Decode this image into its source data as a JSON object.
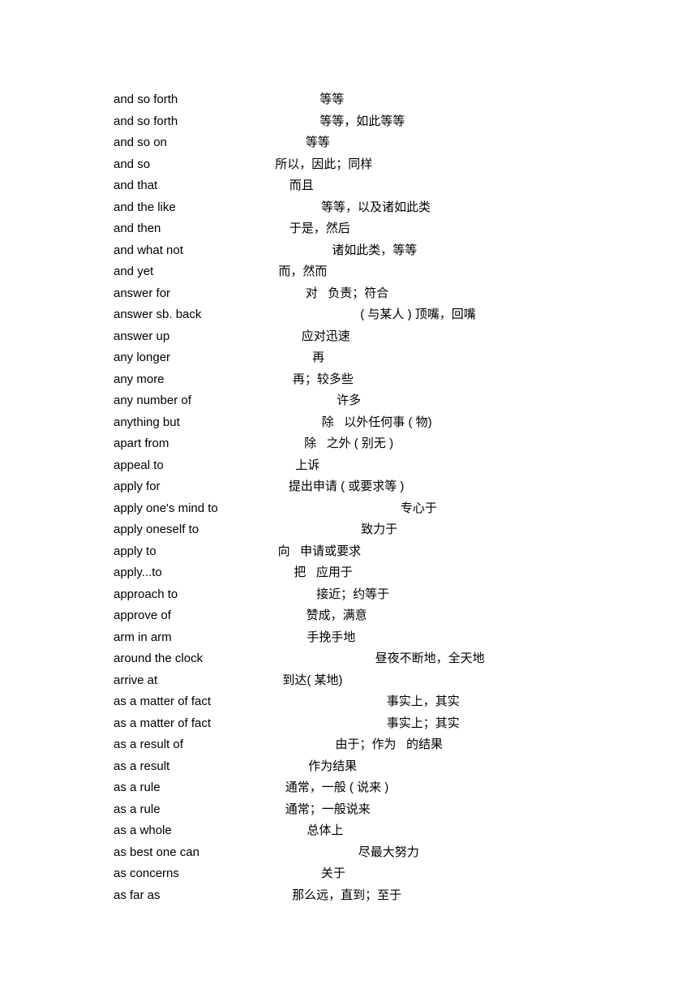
{
  "entries": [
    {
      "en": "and so forth",
      "pad": "                                          ",
      "zh": "等等"
    },
    {
      "en": "and so forth",
      "pad": "                                          ",
      "zh": "等等，如此等等"
    },
    {
      "en": "and so on",
      "pad": "                                         ",
      "zh": "等等"
    },
    {
      "en": "and so",
      "pad": "                                     ",
      "zh": "所以，因此；同样"
    },
    {
      "en": "and that",
      "pad": "                                       ",
      "zh": "而且"
    },
    {
      "en": "and the like",
      "pad": "                                           ",
      "zh": "等等，以及诸如此类"
    },
    {
      "en": "and then",
      "pad": "                                      ",
      "zh": "于是，然后"
    },
    {
      "en": "and what not",
      "pad": "                                            ",
      "zh": "诸如此类，等等"
    },
    {
      "en": "and yet",
      "pad": "                                     ",
      "zh": "而，然而"
    },
    {
      "en": "answer for",
      "pad": "                                        ",
      "zh": "对   负责；符合"
    },
    {
      "en": "answer sb. back",
      "pad": "                                               ",
      "zh": "( 与某人 ) 顶嘴，回嘴"
    },
    {
      "en": "answer up",
      "pad": "                                       ",
      "zh": "应对迅速"
    },
    {
      "en": "any longer",
      "pad": "                                          ",
      "zh": "再"
    },
    {
      "en": "any more",
      "pad": "                                      ",
      "zh": "再；较多些"
    },
    {
      "en": "any number of",
      "pad": "                                           ",
      "zh": "许多"
    },
    {
      "en": "anything but",
      "pad": "                                          ",
      "zh": "除   以外任何事 ( 物)"
    },
    {
      "en": "apart from",
      "pad": "                                        ",
      "zh": "除   之外 ( 别无 )"
    },
    {
      "en": "appeal to",
      "pad": "                                       ",
      "zh": "上诉"
    },
    {
      "en": "apply for",
      "pad": "                                      ",
      "zh": "提出申请 ( 或要求等 )"
    },
    {
      "en": "apply one's mind to",
      "pad": "                                                      ",
      "zh": "专心于"
    },
    {
      "en": "apply oneself to",
      "pad": "                                                ",
      "zh": "致力于"
    },
    {
      "en": "apply to",
      "pad": "                                    ",
      "zh": "向   申请或要求"
    },
    {
      "en": "apply...to",
      "pad": "                                       ",
      "zh": "把   应用于"
    },
    {
      "en": "approach to",
      "pad": "                                         ",
      "zh": "接近；约等于"
    },
    {
      "en": "approve of",
      "pad": "                                        ",
      "zh": "赞成，满意"
    },
    {
      "en": "arm in arm",
      "pad": "                                        ",
      "zh": "手挽手地"
    },
    {
      "en": "around the clock",
      "pad": "                                                   ",
      "zh": "昼夜不断地，全天地"
    },
    {
      "en": "arrive at",
      "pad": "                                     ",
      "zh": "到达( 某地)"
    },
    {
      "en": "as a matter of fact",
      "pad": "                                                    ",
      "zh": "事实上，其实"
    },
    {
      "en": "as a matter of fact",
      "pad": "                                                    ",
      "zh": "事实上；其实"
    },
    {
      "en": "as a result of",
      "pad": "                                             ",
      "zh": "由于；作为   的结果"
    },
    {
      "en": "as a result",
      "pad": "                                         ",
      "zh": "作为结果"
    },
    {
      "en": "as a rule",
      "pad": "                                     ",
      "zh": "通常，一般 ( 说来 )"
    },
    {
      "en": "as a rule",
      "pad": "                                     ",
      "zh": "通常；一般说来"
    },
    {
      "en": "as a whole",
      "pad": "                                        ",
      "zh": "总体上"
    },
    {
      "en": "as best one can",
      "pad": "                                               ",
      "zh": "尽最大努力"
    },
    {
      "en": "as concerns",
      "pad": "                                          ",
      "zh": "关于"
    },
    {
      "en": "as far as",
      "pad": "                                       ",
      "zh": "那么远，直到；至于"
    }
  ]
}
